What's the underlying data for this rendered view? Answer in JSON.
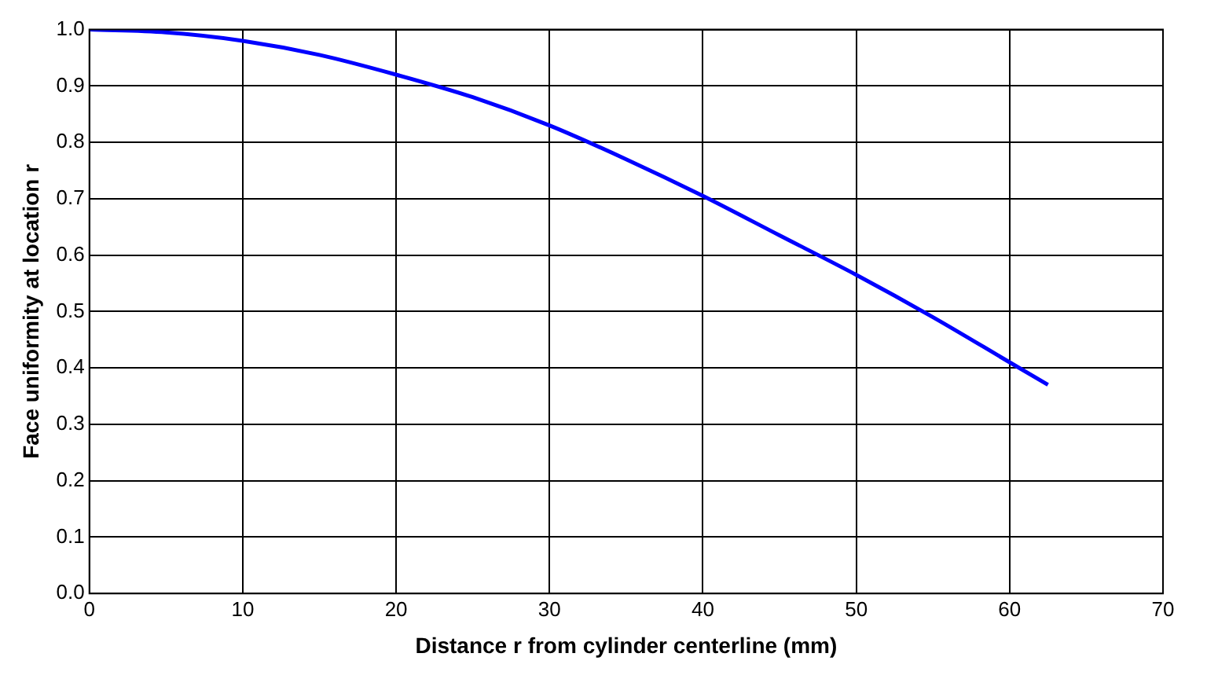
{
  "chart_data": {
    "type": "line",
    "xlabel": "Distance r from cylinder centerline (mm)",
    "ylabel": "Face uniformity at location r",
    "x": [
      0,
      5,
      10,
      15,
      20,
      25,
      30,
      35,
      40,
      45,
      50,
      55,
      60,
      62.5
    ],
    "series": [
      {
        "color": "#0000ff",
        "values": [
          1.0,
          0.995,
          0.98,
          0.955,
          0.92,
          0.88,
          0.83,
          0.77,
          0.705,
          0.635,
          0.565,
          0.49,
          0.41,
          0.37
        ]
      }
    ],
    "xlim": [
      0,
      70
    ],
    "xticks": [
      0,
      10,
      20,
      30,
      40,
      50,
      60,
      70
    ],
    "ylim": [
      0,
      1.0
    ],
    "yticks": [
      {
        "value": 0,
        "label": "0.0"
      },
      0.1,
      0.2,
      0.3,
      0.4,
      0.5,
      0.6,
      0.7,
      0.8,
      0.9,
      {
        "value": 1.0,
        "label": "1.0"
      }
    ],
    "grid": true,
    "legend": false,
    "marker": "none",
    "line_style": "solid"
  }
}
